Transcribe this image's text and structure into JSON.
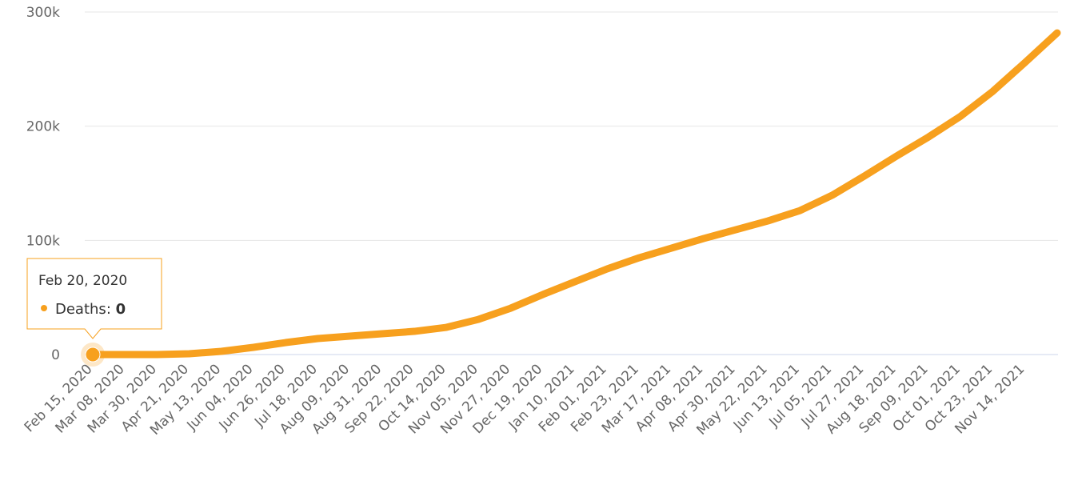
{
  "chart_data": {
    "type": "line",
    "categories": [
      "Feb 15, 2020",
      "Mar 08, 2020",
      "Mar 30, 2020",
      "Apr 21, 2020",
      "May 13, 2020",
      "Jun 04, 2020",
      "Jun 26, 2020",
      "Jul 18, 2020",
      "Aug 09, 2020",
      "Aug 31, 2020",
      "Sep 22, 2020",
      "Oct 14, 2020",
      "Nov 05, 2020",
      "Nov 27, 2020",
      "Dec 19, 2020",
      "Jan 10, 2021",
      "Feb 01, 2021",
      "Feb 23, 2021",
      "Mar 17, 2021",
      "Apr 08, 2021",
      "Apr 30, 2021",
      "May 22, 2021",
      "Jun 13, 2021",
      "Jul 05, 2021",
      "Jul 27, 2021",
      "Aug 18, 2021",
      "Sep 09, 2021",
      "Oct 01, 2021",
      "Oct 23, 2021",
      "Nov 14, 2021",
      null
    ],
    "series": [
      {
        "name": "Deaths",
        "color": "#f7a01e",
        "values": [
          0,
          0,
          0,
          700,
          2800,
          6300,
          10500,
          14000,
          16100,
          18200,
          20300,
          23800,
          30800,
          40600,
          52600,
          63800,
          75000,
          84800,
          93200,
          101600,
          109300,
          117000,
          126100,
          139500,
          156300,
          173800,
          190600,
          208800,
          230600,
          255800,
          281700
        ]
      }
    ],
    "ylim": [
      0,
      300000
    ],
    "yticks": [
      0,
      {
        "value": 100000,
        "label": "100k"
      },
      {
        "value": 200000,
        "label": "200k"
      },
      {
        "value": 300000,
        "label": "300k"
      }
    ],
    "grid": true,
    "tooltip": {
      "date": "Feb 20, 2020",
      "label": "Deaths",
      "value": 0
    }
  }
}
